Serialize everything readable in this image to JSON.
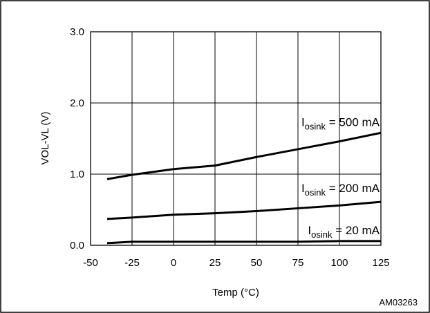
{
  "chart_data": {
    "type": "line",
    "title": "",
    "xlabel": "Temp (°C)",
    "ylabel": "VOL-VL (V)",
    "xlim": [
      -50,
      125
    ],
    "ylim": [
      0,
      3
    ],
    "grid": true,
    "x_ticks": [
      -50,
      -25,
      0,
      25,
      50,
      75,
      100,
      125
    ],
    "x_tick_labels": [
      "-50",
      "-25",
      "0",
      "25",
      "50",
      "75",
      "100",
      "125"
    ],
    "y_ticks": [
      0,
      1,
      2,
      3
    ],
    "y_tick_labels": [
      "0.0",
      "1.0",
      "2.0",
      "3.0"
    ],
    "series": [
      {
        "label_main": "I",
        "label_sub": "osink",
        "label_rest": " = 500 mA",
        "x": [
          -40,
          -25,
          0,
          25,
          50,
          75,
          100,
          125
        ],
        "y": [
          0.93,
          0.99,
          1.07,
          1.12,
          1.24,
          1.35,
          1.46,
          1.58
        ]
      },
      {
        "label_main": "I",
        "label_sub": "osink",
        "label_rest": " = 200 mA",
        "x": [
          -40,
          -25,
          0,
          25,
          50,
          75,
          100,
          125
        ],
        "y": [
          0.37,
          0.39,
          0.43,
          0.45,
          0.48,
          0.52,
          0.56,
          0.61
        ]
      },
      {
        "label_main": "I",
        "label_sub": "osink",
        "label_rest": " = 20 mA",
        "x": [
          -40,
          -25,
          0,
          25,
          50,
          75,
          100,
          125
        ],
        "y": [
          0.03,
          0.05,
          0.05,
          0.05,
          0.05,
          0.05,
          0.06,
          0.06
        ]
      }
    ],
    "figure_id": "AM03263",
    "line_color": "#000000"
  }
}
